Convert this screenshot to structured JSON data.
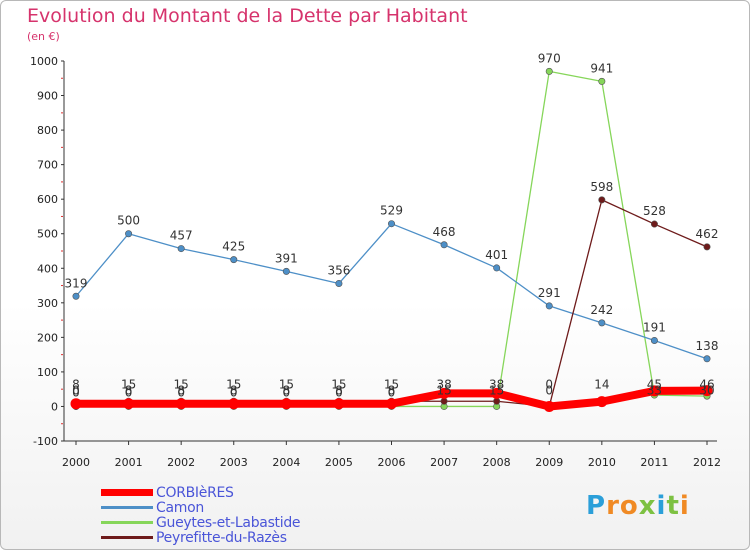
{
  "title": "Evolution du Montant de la Dette par Habitant",
  "subtitle": "(en €)",
  "logo": "Proxiti",
  "chart_data": {
    "type": "line",
    "title": "Evolution du Montant de la Dette par Habitant",
    "ylabel": "(en €)",
    "ylim": [
      -100,
      1000
    ],
    "yticks": [
      -100,
      0,
      100,
      200,
      300,
      400,
      500,
      600,
      700,
      800,
      900,
      1000
    ],
    "x": [
      2000,
      2001,
      2002,
      2003,
      2004,
      2005,
      2006,
      2007,
      2008,
      2009,
      2010,
      2011,
      2012
    ],
    "grid": false,
    "legend_position": "bottom-left",
    "series": [
      {
        "name": "CORBIèRES",
        "color": "#ff0000",
        "values": [
          8,
          8,
          8,
          8,
          8,
          8,
          8,
          38,
          38,
          0,
          14,
          45,
          46
        ]
      },
      {
        "name": "Camon",
        "color": "#4d8fc7",
        "values": [
          319,
          500,
          457,
          425,
          391,
          356,
          529,
          468,
          401,
          291,
          242,
          191,
          138
        ]
      },
      {
        "name": "Gueytes-et-Labastide",
        "color": "#86d65a",
        "values": [
          0,
          0,
          0,
          0,
          0,
          0,
          0,
          0,
          0,
          970,
          941,
          33,
          30
        ]
      },
      {
        "name": "Peyrefitte-du-Razès",
        "color": "#6e1b1b",
        "values": [
          0,
          15,
          15,
          15,
          15,
          15,
          15,
          15,
          15,
          0,
          598,
          528,
          462
        ]
      }
    ],
    "point_labels": [
      {
        "x": 2000,
        "texts": [
          "8",
          "0",
          "0"
        ]
      },
      {
        "x": 2001,
        "texts": [
          "15",
          "8",
          "0"
        ]
      },
      {
        "x": 2002,
        "texts": [
          "15",
          "8",
          "0"
        ]
      },
      {
        "x": 2003,
        "texts": [
          "15",
          "8",
          "0"
        ]
      },
      {
        "x": 2004,
        "texts": [
          "15",
          "8",
          "0"
        ]
      },
      {
        "x": 2005,
        "texts": [
          "15",
          "8",
          "0"
        ]
      },
      {
        "x": 2006,
        "texts": [
          "15",
          "8",
          "0"
        ]
      },
      {
        "x": 2007,
        "texts": [
          "38",
          "15"
        ]
      },
      {
        "x": 2008,
        "texts": [
          "38",
          "15"
        ]
      },
      {
        "x": 2009,
        "texts": [
          "0",
          "0"
        ]
      },
      {
        "x": 2010,
        "texts": [
          "14"
        ]
      },
      {
        "x": 2011,
        "texts": [
          "45",
          "33"
        ]
      },
      {
        "x": 2012,
        "texts": [
          "46",
          "30"
        ]
      }
    ]
  }
}
